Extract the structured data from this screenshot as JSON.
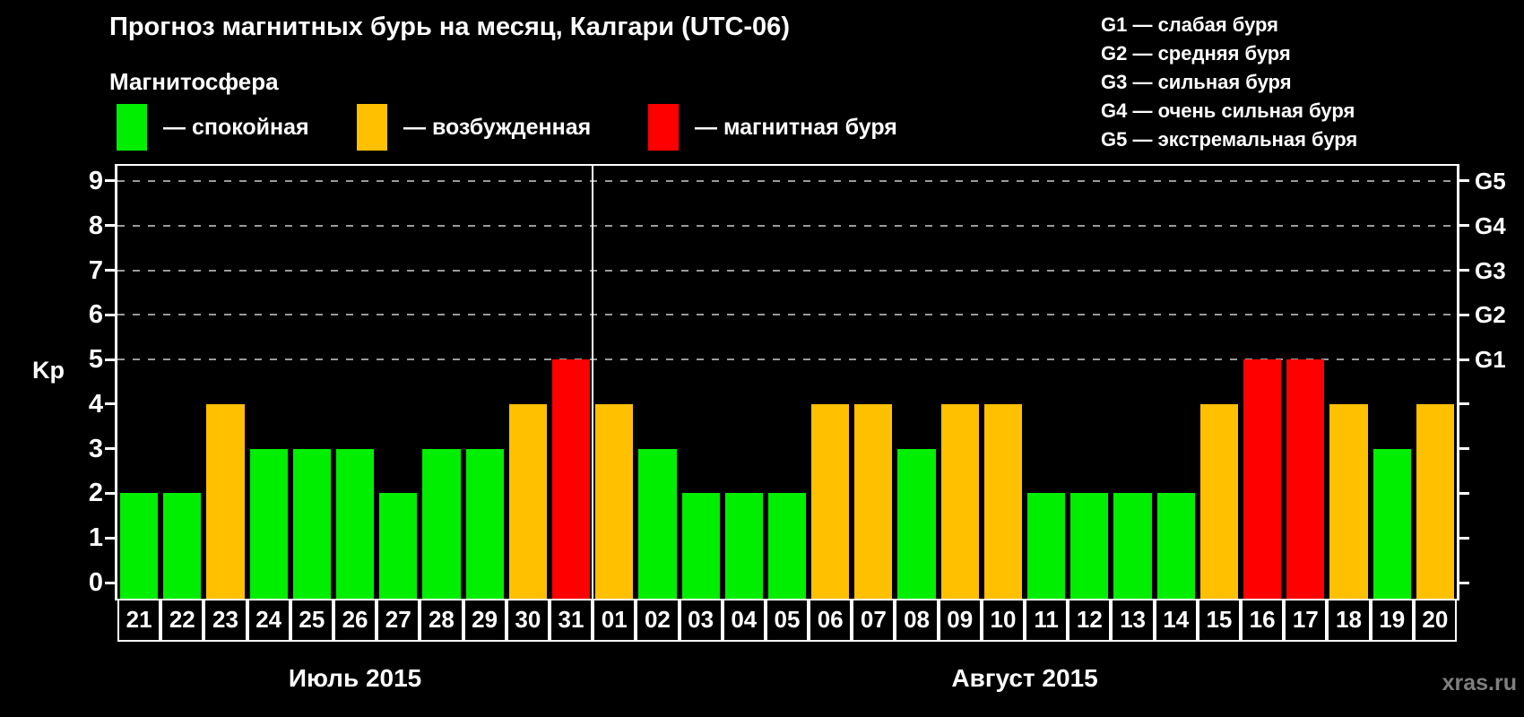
{
  "title": "Прогноз магнитных бурь на месяц, Калгари (UTC-06)",
  "magnetosphere_legend": {
    "heading": "Магнитосфера",
    "items": [
      {
        "name": "calm",
        "label": "— спокойная",
        "color": "#00ee00"
      },
      {
        "name": "excited",
        "label": "— возбужденная",
        "color": "#ffc000"
      },
      {
        "name": "storm",
        "label": "— магнитная буря",
        "color": "#ff0000"
      }
    ]
  },
  "g_scale_legend": {
    "items": [
      {
        "code": "G1",
        "label": "G1 — слабая буря"
      },
      {
        "code": "G2",
        "label": "G2 — средняя буря"
      },
      {
        "code": "G3",
        "label": "G3 — сильная буря"
      },
      {
        "code": "G4",
        "label": "G4 — очень сильная буря"
      },
      {
        "code": "G5",
        "label": "G5 — экстремальная буря"
      }
    ]
  },
  "watermark": "xras.ru",
  "chart_data": {
    "type": "bar",
    "title": "Прогноз магнитных бурь на месяц, Калгари (UTC-06)",
    "ylabel": "Kp",
    "ylim": [
      0,
      9
    ],
    "yticks": [
      0,
      1,
      2,
      3,
      4,
      5,
      6,
      7,
      8,
      9
    ],
    "gridlines_kp": [
      5,
      6,
      7,
      8,
      9
    ],
    "grid": "dashed-horizontal",
    "legend_position": "top",
    "right_axis": [
      {
        "kp": 5,
        "label": "G1"
      },
      {
        "kp": 6,
        "label": "G2"
      },
      {
        "kp": 7,
        "label": "G3"
      },
      {
        "kp": 8,
        "label": "G4"
      },
      {
        "kp": 9,
        "label": "G5"
      }
    ],
    "state_colors": {
      "calm": "#00ee00",
      "excited": "#ffc000",
      "storm": "#ff0000"
    },
    "months": [
      {
        "label": "Июль 2015",
        "start_index": 0,
        "days": 11
      },
      {
        "label": "Август 2015",
        "start_index": 11,
        "days": 20
      }
    ],
    "bars": [
      {
        "day": "21",
        "kp": 2,
        "state": "calm"
      },
      {
        "day": "22",
        "kp": 2,
        "state": "calm"
      },
      {
        "day": "23",
        "kp": 4,
        "state": "excited"
      },
      {
        "day": "24",
        "kp": 3,
        "state": "calm"
      },
      {
        "day": "25",
        "kp": 3,
        "state": "calm"
      },
      {
        "day": "26",
        "kp": 3,
        "state": "calm"
      },
      {
        "day": "27",
        "kp": 2,
        "state": "calm"
      },
      {
        "day": "28",
        "kp": 3,
        "state": "calm"
      },
      {
        "day": "29",
        "kp": 3,
        "state": "calm"
      },
      {
        "day": "30",
        "kp": 4,
        "state": "excited"
      },
      {
        "day": "31",
        "kp": 5,
        "state": "storm"
      },
      {
        "day": "01",
        "kp": 4,
        "state": "excited"
      },
      {
        "day": "02",
        "kp": 3,
        "state": "calm"
      },
      {
        "day": "03",
        "kp": 2,
        "state": "calm"
      },
      {
        "day": "04",
        "kp": 2,
        "state": "calm"
      },
      {
        "day": "05",
        "kp": 2,
        "state": "calm"
      },
      {
        "day": "06",
        "kp": 4,
        "state": "excited"
      },
      {
        "day": "07",
        "kp": 4,
        "state": "excited"
      },
      {
        "day": "08",
        "kp": 3,
        "state": "calm"
      },
      {
        "day": "09",
        "kp": 4,
        "state": "excited"
      },
      {
        "day": "10",
        "kp": 4,
        "state": "excited"
      },
      {
        "day": "11",
        "kp": 2,
        "state": "calm"
      },
      {
        "day": "12",
        "kp": 2,
        "state": "calm"
      },
      {
        "day": "13",
        "kp": 2,
        "state": "calm"
      },
      {
        "day": "14",
        "kp": 2,
        "state": "calm"
      },
      {
        "day": "15",
        "kp": 4,
        "state": "excited"
      },
      {
        "day": "16",
        "kp": 5,
        "state": "storm"
      },
      {
        "day": "17",
        "kp": 5,
        "state": "storm"
      },
      {
        "day": "18",
        "kp": 4,
        "state": "excited"
      },
      {
        "day": "19",
        "kp": 3,
        "state": "calm"
      },
      {
        "day": "20",
        "kp": 4,
        "state": "excited"
      }
    ]
  }
}
